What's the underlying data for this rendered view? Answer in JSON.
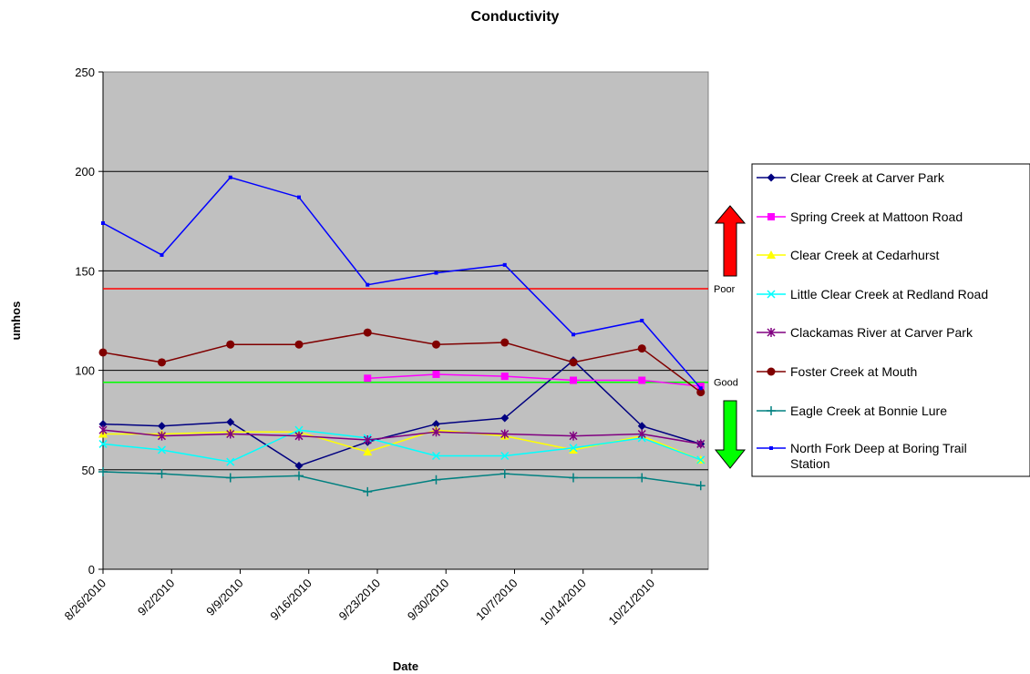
{
  "chart_data": {
    "type": "line",
    "title": "Conductivity",
    "xlabel": "Date",
    "ylabel": "umhos",
    "ylim": [
      0,
      250
    ],
    "yticks": [
      0,
      50,
      100,
      150,
      200,
      250
    ],
    "x_tick_labels": [
      "8/26/2010",
      "9/2/2010",
      "9/9/2010",
      "9/16/2010",
      "9/23/2010",
      "9/30/2010",
      "10/7/2010",
      "10/14/2010",
      "10/21/2010"
    ],
    "x": [
      "8/26/2010",
      "9/1/2010",
      "9/8/2010",
      "9/15/2010",
      "9/22/2010",
      "9/29/2010",
      "10/6/2010",
      "10/13/2010",
      "10/20/2010",
      "10/26/2010"
    ],
    "grid": true,
    "plot_background": "#C0C0C0",
    "legend_position": "right",
    "series": [
      {
        "name": "Clear Creek at Carver Park",
        "color": "#000080",
        "marker": "diamond",
        "values": [
          73,
          72,
          74,
          52,
          64,
          73,
          76,
          105,
          72,
          63
        ]
      },
      {
        "name": "Spring Creek at Mattoon Road",
        "color": "#FF00FF",
        "marker": "square",
        "values": [
          null,
          null,
          null,
          null,
          96,
          98,
          97,
          95,
          95,
          92
        ]
      },
      {
        "name": "Clear Creek at Cedarhurst",
        "color": "#FFFF00",
        "marker": "triangle",
        "values": [
          68,
          68,
          69,
          69,
          59,
          70,
          67,
          60,
          67,
          55
        ]
      },
      {
        "name": "Little Clear Creek at Redland Road",
        "color": "#00FFFF",
        "marker": "x",
        "values": [
          63,
          60,
          54,
          70,
          66,
          57,
          57,
          61,
          66,
          55
        ]
      },
      {
        "name": "Clackamas River at Carver Park",
        "color": "#800080",
        "marker": "star",
        "values": [
          70,
          67,
          68,
          67,
          65,
          69,
          68,
          67,
          68,
          63
        ]
      },
      {
        "name": "Foster Creek at Mouth",
        "color": "#800000",
        "marker": "circle",
        "values": [
          109,
          104,
          113,
          113,
          119,
          113,
          114,
          104,
          111,
          89
        ]
      },
      {
        "name": "Eagle Creek at Bonnie Lure",
        "color": "#008080",
        "marker": "plus",
        "values": [
          49,
          48,
          46,
          47,
          39,
          45,
          48,
          46,
          46,
          42
        ]
      },
      {
        "name": "North Fork Deep at Boring Trail Station",
        "color": "#0000FF",
        "marker": "dot",
        "values": [
          174,
          158,
          197,
          187,
          143,
          149,
          153,
          118,
          125,
          91
        ]
      }
    ],
    "reference_lines": [
      {
        "label": "Poor",
        "value": 141,
        "color": "#FF0000"
      },
      {
        "label": "Good",
        "value": 94,
        "color": "#00FF00"
      }
    ],
    "arrows": [
      {
        "direction": "up",
        "color": "#FF0000"
      },
      {
        "direction": "down",
        "color": "#00FF00"
      }
    ]
  }
}
